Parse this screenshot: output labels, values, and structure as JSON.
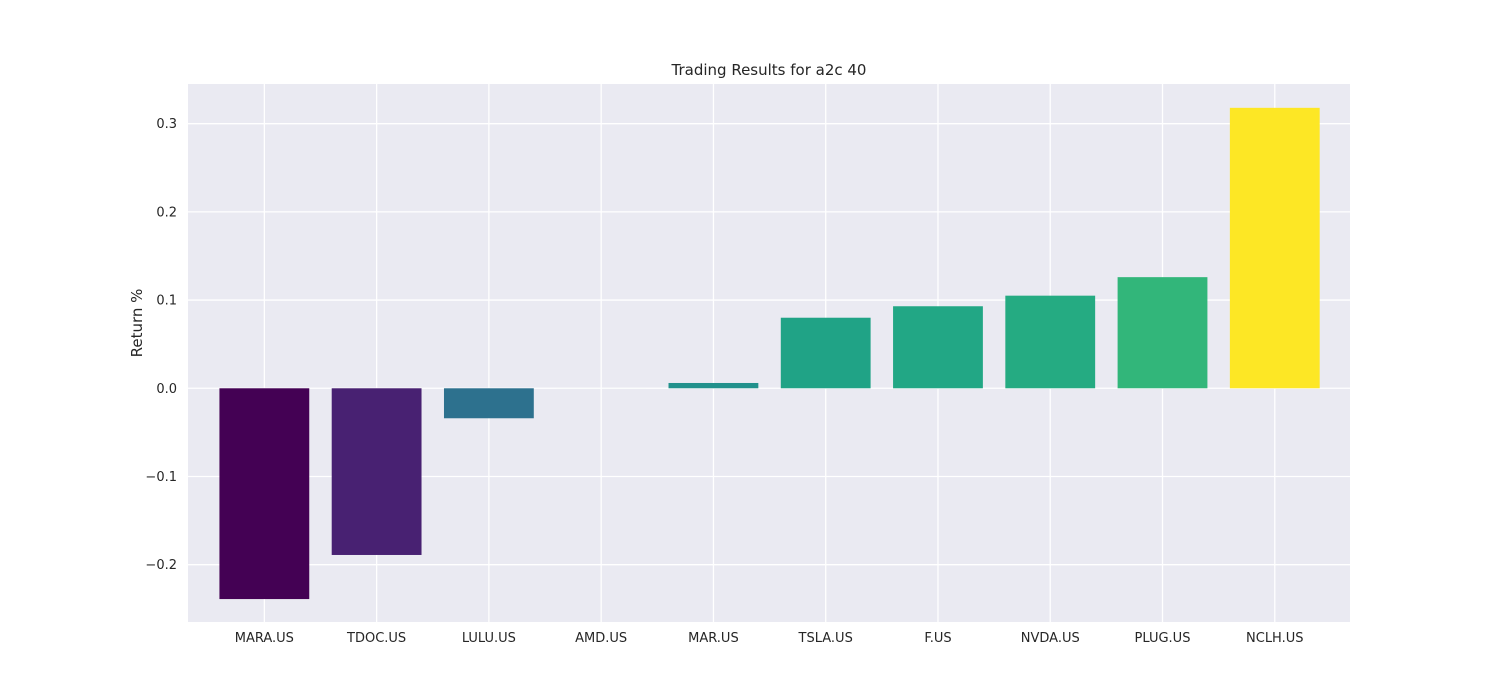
{
  "chart_data": {
    "type": "bar",
    "title": "Trading Results for a2c 40",
    "xlabel": "",
    "ylabel": "Return %",
    "categories": [
      "MARA.US",
      "TDOC.US",
      "LULU.US",
      "AMD.US",
      "MAR.US",
      "TSLA.US",
      "F.US",
      "NVDA.US",
      "PLUG.US",
      "NCLH.US"
    ],
    "values": [
      -0.239,
      -0.189,
      -0.034,
      0.0,
      0.006,
      0.08,
      0.093,
      0.105,
      0.126,
      0.318
    ],
    "colors": [
      "#440154",
      "#482172",
      "#2d718e",
      "#2a788e",
      "#21918c",
      "#20a386",
      "#22a785",
      "#25ab82",
      "#32b67a",
      "#fde725"
    ],
    "ylim": [
      -0.265,
      0.345
    ],
    "yticks": [
      -0.2,
      -0.1,
      0.0,
      0.1,
      0.2,
      0.3
    ],
    "ytick_labels": [
      "−0.2",
      "−0.1",
      "0.0",
      "0.1",
      "0.2",
      "0.3"
    ],
    "grid": true,
    "background": "#eaeaf2",
    "grid_color": "#ffffff"
  }
}
